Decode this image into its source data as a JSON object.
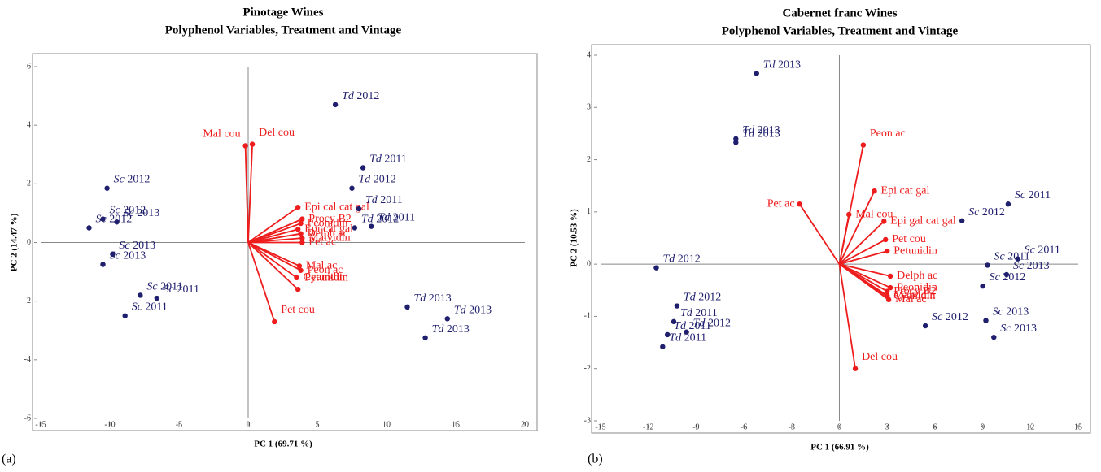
{
  "chart_data": [
    {
      "type": "biplot",
      "panel_label": "(a)",
      "title": "Pinotage Wines",
      "subtitle": "Polyphenol Variables, Treatment and Vintage",
      "x_label": "PC 1 (69.71 %)",
      "y_label": "PC 2 (14.47 %)",
      "xlim": [
        -15,
        20
      ],
      "xticks": [
        -15,
        -10,
        -5,
        0,
        5,
        10,
        15,
        20
      ],
      "ylim": [
        -6,
        6
      ],
      "yticks": [
        -6,
        -4,
        -2,
        0,
        2,
        4,
        6
      ],
      "point_color": "#1f1f6e",
      "vector_color": "#ee1c1c",
      "points": [
        {
          "treatment": "Td",
          "vintage": "2012",
          "x": 6.3,
          "y": 4.7
        },
        {
          "treatment": "Td",
          "vintage": "2011",
          "x": 8.3,
          "y": 2.55
        },
        {
          "treatment": "Td",
          "vintage": "2012",
          "x": 7.5,
          "y": 1.85
        },
        {
          "treatment": "Td",
          "vintage": "2011",
          "x": 8.0,
          "y": 1.15
        },
        {
          "treatment": "Td",
          "vintage": "2012",
          "x": 7.7,
          "y": 0.5
        },
        {
          "treatment": "Td",
          "vintage": "2011",
          "x": 8.9,
          "y": 0.55
        },
        {
          "treatment": "Td",
          "vintage": "2013",
          "x": 11.5,
          "y": -2.2
        },
        {
          "treatment": "Td",
          "vintage": "2013",
          "x": 14.4,
          "y": -2.6
        },
        {
          "treatment": "Td",
          "vintage": "2013",
          "x": 12.8,
          "y": -3.25
        },
        {
          "treatment": "Sc",
          "vintage": "2012",
          "x": -10.2,
          "y": 1.85
        },
        {
          "treatment": "Sc",
          "vintage": "2012",
          "x": -10.5,
          "y": 0.8
        },
        {
          "treatment": "Sc",
          "vintage": "2013",
          "x": -9.5,
          "y": 0.7
        },
        {
          "treatment": "Sc",
          "vintage": "2012",
          "x": -11.5,
          "y": 0.5
        },
        {
          "treatment": "Sc",
          "vintage": "2013",
          "x": -9.8,
          "y": -0.4
        },
        {
          "treatment": "Sc",
          "vintage": "2013",
          "x": -10.5,
          "y": -0.75
        },
        {
          "treatment": "Sc",
          "vintage": "2011",
          "x": -7.8,
          "y": -1.8
        },
        {
          "treatment": "Sc",
          "vintage": "2011",
          "x": -6.6,
          "y": -1.9
        },
        {
          "treatment": "Sc",
          "vintage": "2011",
          "x": -8.9,
          "y": -2.5
        }
      ],
      "vectors": [
        {
          "name": "Mal cou",
          "x": -0.2,
          "y": 3.3
        },
        {
          "name": "Del cou",
          "x": 0.3,
          "y": 3.35
        },
        {
          "name": "Epi cal cat gal",
          "x": 3.6,
          "y": 1.2
        },
        {
          "name": "Procy B2",
          "x": 3.9,
          "y": 0.8
        },
        {
          "name": "Peonidin",
          "x": 3.8,
          "y": 0.65
        },
        {
          "name": "Epi cat gal",
          "x": 3.6,
          "y": 0.45
        },
        {
          "name": "Delph ac",
          "x": 3.8,
          "y": 0.3
        },
        {
          "name": "Malvidin",
          "x": 3.9,
          "y": 0.15
        },
        {
          "name": "Pet ac",
          "x": 3.9,
          "y": 0.0
        },
        {
          "name": "Mal ac",
          "x": 3.7,
          "y": -0.8
        },
        {
          "name": "Peon ac",
          "x": 3.8,
          "y": -0.95
        },
        {
          "name": "Cyanidin",
          "x": 3.5,
          "y": -1.2
        },
        {
          "name": "Petunidin",
          "x": 3.6,
          "y": -1.6
        },
        {
          "name": "Pet cou",
          "x": 1.9,
          "y": -2.7
        }
      ]
    },
    {
      "type": "biplot",
      "panel_label": "(b)",
      "title": "Cabernet franc Wines",
      "subtitle": "Polyphenol Variables, Treatment and Vintage",
      "x_label": "PC 1 (66.91 %)",
      "y_label": "PC 2 (10.53 %)",
      "xlim": [
        -15,
        15
      ],
      "xticks": [
        -15,
        -12,
        -9,
        -6,
        -3,
        0,
        3,
        6,
        9,
        12,
        15
      ],
      "ylim": [
        -3,
        4
      ],
      "yticks": [
        -3,
        -2,
        -1,
        0,
        1,
        2,
        3,
        4
      ],
      "point_color": "#1f1f6e",
      "vector_color": "#ee1c1c",
      "points": [
        {
          "treatment": "Td",
          "vintage": "2013",
          "x": -5.2,
          "y": 3.65
        },
        {
          "treatment": "Td",
          "vintage": "2013",
          "x": -6.5,
          "y": 2.4
        },
        {
          "treatment": "Td",
          "vintage": "2013",
          "x": -6.5,
          "y": 2.33
        },
        {
          "treatment": "Td",
          "vintage": "2012",
          "x": -11.5,
          "y": -0.07
        },
        {
          "treatment": "Td",
          "vintage": "2012",
          "x": -10.2,
          "y": -0.8
        },
        {
          "treatment": "Td",
          "vintage": "2012",
          "x": -9.6,
          "y": -1.3
        },
        {
          "treatment": "Td",
          "vintage": "2011",
          "x": -10.4,
          "y": -1.1
        },
        {
          "treatment": "Td",
          "vintage": "2011",
          "x": -10.8,
          "y": -1.35
        },
        {
          "treatment": "Td",
          "vintage": "2011",
          "x": -11.1,
          "y": -1.58
        },
        {
          "treatment": "Sc",
          "vintage": "2012",
          "x": 7.7,
          "y": 0.83
        },
        {
          "treatment": "Sc",
          "vintage": "2012",
          "x": 9.0,
          "y": -0.42
        },
        {
          "treatment": "Sc",
          "vintage": "2012",
          "x": 5.4,
          "y": -1.18
        },
        {
          "treatment": "Sc",
          "vintage": "2011",
          "x": 10.6,
          "y": 1.15
        },
        {
          "treatment": "Sc",
          "vintage": "2011",
          "x": 11.2,
          "y": 0.1
        },
        {
          "treatment": "Sc",
          "vintage": "2011",
          "x": 9.3,
          "y": -0.02
        },
        {
          "treatment": "Sc",
          "vintage": "2013",
          "x": 10.5,
          "y": -0.2
        },
        {
          "treatment": "Sc",
          "vintage": "2013",
          "x": 9.2,
          "y": -1.08
        },
        {
          "treatment": "Sc",
          "vintage": "2013",
          "x": 9.7,
          "y": -1.4
        }
      ],
      "vectors": [
        {
          "name": "Peon ac",
          "x": 1.5,
          "y": 2.28
        },
        {
          "name": "Mal cou",
          "x": 0.6,
          "y": 0.95
        },
        {
          "name": "Epi cat gal",
          "x": 2.2,
          "y": 1.4
        },
        {
          "name": "Epi gal cat gal",
          "x": 2.8,
          "y": 0.82
        },
        {
          "name": "Pet cou",
          "x": 2.9,
          "y": 0.47
        },
        {
          "name": "Petunidin",
          "x": 3.0,
          "y": 0.25
        },
        {
          "name": "Delph ac",
          "x": 3.2,
          "y": -0.23
        },
        {
          "name": "Peonidin",
          "x": 3.2,
          "y": -0.45
        },
        {
          "name": "Procy B2",
          "x": 3.0,
          "y": -0.52
        },
        {
          "name": "Malvidin",
          "x": 3.0,
          "y": -0.6
        },
        {
          "name": "Mal ac",
          "x": 3.1,
          "y": -0.68
        },
        {
          "name": "Cyanidin",
          "x": 3.0,
          "y": -0.62
        },
        {
          "name": "Pet ac",
          "x": -2.5,
          "y": 1.15
        },
        {
          "name": "Del cou",
          "x": 1.0,
          "y": -2.0
        }
      ]
    }
  ]
}
